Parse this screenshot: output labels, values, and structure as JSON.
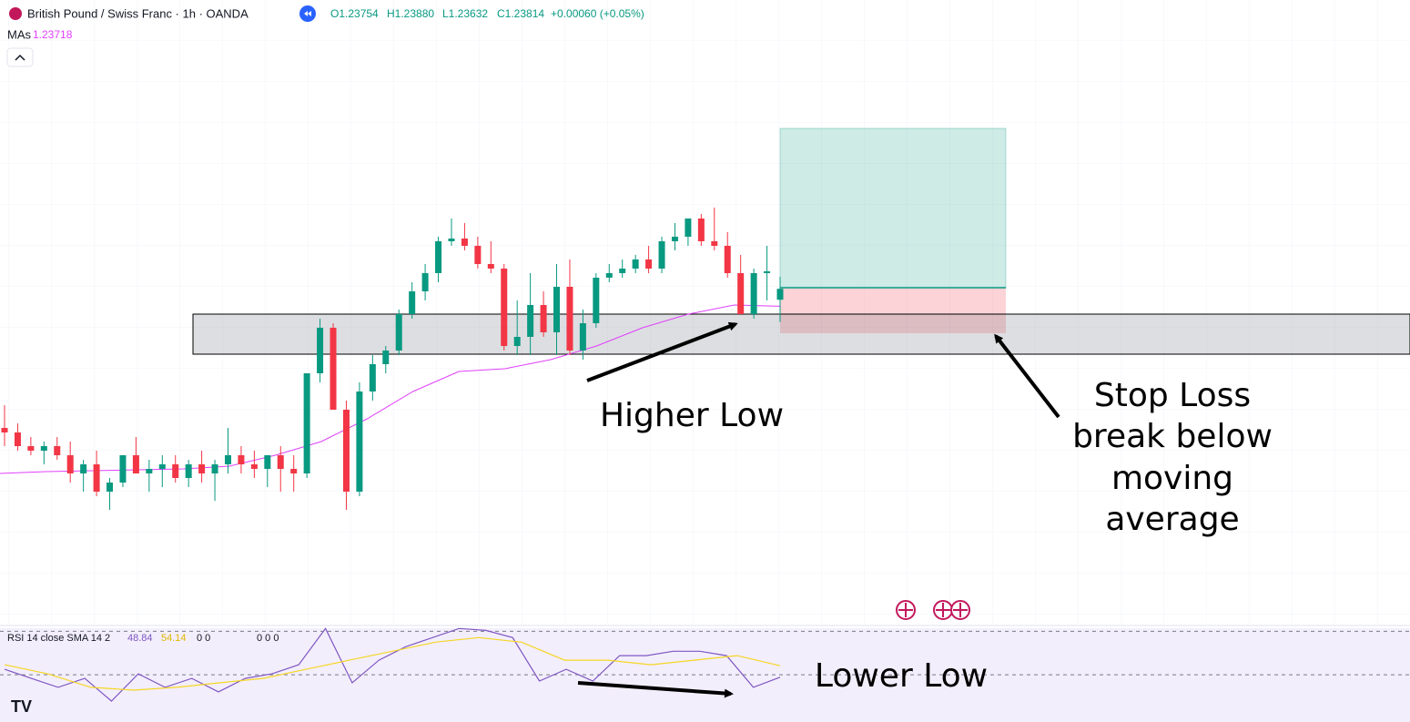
{
  "chart_data": {
    "type": "candlestick",
    "symbol": "British Pound / Swiss Franc · 1h · OANDA",
    "ohlc_text": [
      "O1.23754",
      "H1.23880",
      "L1.23632",
      "C1.23814",
      "+0.00060 (+0.05%)"
    ],
    "ma_label": "MAs",
    "ylim": [
      1.21975,
      1.254
    ],
    "up_color": "#089981",
    "down_color": "#f23645",
    "candles": [
      [
        1.2305,
        1.23175,
        1.2295,
        1.23025
      ],
      [
        1.23025,
        1.23075,
        1.22925,
        1.2295
      ],
      [
        1.2295,
        1.23,
        1.229,
        1.22925
      ],
      [
        1.22925,
        1.22975,
        1.2285,
        1.2295
      ],
      [
        1.2295,
        1.23,
        1.22875,
        1.229
      ],
      [
        1.229,
        1.22975,
        1.2275,
        1.228
      ],
      [
        1.228,
        1.22875,
        1.227,
        1.2285
      ],
      [
        1.2285,
        1.22925,
        1.22675,
        1.227
      ],
      [
        1.227,
        1.22775,
        1.226,
        1.2275
      ],
      [
        1.2275,
        1.229,
        1.22725,
        1.229
      ],
      [
        1.229,
        1.23,
        1.228,
        1.228
      ],
      [
        1.228,
        1.22875,
        1.227,
        1.22825
      ],
      [
        1.22825,
        1.229,
        1.22725,
        1.2285
      ],
      [
        1.2285,
        1.229,
        1.2275,
        1.22775
      ],
      [
        1.22775,
        1.22875,
        1.22725,
        1.2285
      ],
      [
        1.2285,
        1.22925,
        1.2275,
        1.228
      ],
      [
        1.228,
        1.22875,
        1.2265,
        1.2285
      ],
      [
        1.2285,
        1.2305,
        1.228,
        1.229
      ],
      [
        1.229,
        1.2295,
        1.228,
        1.2285
      ],
      [
        1.2285,
        1.22925,
        1.22775,
        1.22825
      ],
      [
        1.22825,
        1.229,
        1.22725,
        1.229
      ],
      [
        1.229,
        1.2295,
        1.227,
        1.22825
      ],
      [
        1.22825,
        1.229,
        1.227,
        1.228
      ],
      [
        1.228,
        1.2335,
        1.22775,
        1.2335
      ],
      [
        1.2335,
        1.2365,
        1.233,
        1.236
      ],
      [
        1.236,
        1.23625,
        1.2315,
        1.2315
      ],
      [
        1.2315,
        1.232,
        1.226,
        1.227
      ],
      [
        1.227,
        1.233,
        1.22675,
        1.2325
      ],
      [
        1.2325,
        1.2345,
        1.232,
        1.234
      ],
      [
        1.234,
        1.235,
        1.2335,
        1.23475
      ],
      [
        1.23475,
        1.237,
        1.2345,
        1.23675
      ],
      [
        1.23675,
        1.2385,
        1.2365,
        1.238
      ],
      [
        1.238,
        1.2395,
        1.2375,
        1.239
      ],
      [
        1.239,
        1.241,
        1.2385,
        1.24075
      ],
      [
        1.24075,
        1.242,
        1.2405,
        1.2409
      ],
      [
        1.2409,
        1.24175,
        1.24025,
        1.2405
      ],
      [
        1.2405,
        1.241,
        1.23925,
        1.2395
      ],
      [
        1.2395,
        1.24075,
        1.239,
        1.23925
      ],
      [
        1.23925,
        1.2395,
        1.23475,
        1.235
      ],
      [
        1.235,
        1.2375,
        1.2345,
        1.2355
      ],
      [
        1.2355,
        1.239,
        1.2345,
        1.23725
      ],
      [
        1.23725,
        1.238,
        1.2355,
        1.23575
      ],
      [
        1.23575,
        1.2395,
        1.2345,
        1.23825
      ],
      [
        1.23825,
        1.23975,
        1.2345,
        1.23475
      ],
      [
        1.23475,
        1.237,
        1.23425,
        1.23625
      ],
      [
        1.23625,
        1.239,
        1.236,
        1.23875
      ],
      [
        1.23875,
        1.2395,
        1.2385,
        1.239
      ],
      [
        1.239,
        1.23975,
        1.23875,
        1.23925
      ],
      [
        1.23925,
        1.24,
        1.239,
        1.23975
      ],
      [
        1.23975,
        1.2405,
        1.239,
        1.23925
      ],
      [
        1.23925,
        1.241,
        1.239,
        1.24075
      ],
      [
        1.24075,
        1.24175,
        1.24025,
        1.241
      ],
      [
        1.241,
        1.242,
        1.2405,
        1.242
      ],
      [
        1.242,
        1.24225,
        1.2405,
        1.24075
      ],
      [
        1.24075,
        1.2426,
        1.24025,
        1.2405
      ],
      [
        1.2405,
        1.24125,
        1.23875,
        1.239
      ],
      [
        1.239,
        1.24,
        1.23675,
        1.23675
      ],
      [
        1.23675,
        1.23925,
        1.2365,
        1.239
      ],
      [
        1.239,
        1.2405,
        1.2375,
        1.2391
      ],
      [
        1.23754,
        1.2388,
        1.23632,
        1.23814
      ]
    ],
    "ma": {
      "color": "#e040fb",
      "values": [
        1.228,
        1.2281,
        1.22815,
        1.2282,
        1.22825,
        1.2284,
        1.229,
        1.22975,
        1.231,
        1.2325,
        1.2336,
        1.23375,
        1.23425,
        1.235,
        1.236,
        1.23675,
        1.23725,
        1.23718
      ]
    },
    "zone": [
      1.23455,
      1.23675
    ],
    "position": {
      "target": 1.24695,
      "entry": 1.2382,
      "stop": 1.2357
    },
    "rsi": {
      "label": "RSI 14 close SMA 14 2",
      "ylim": [
        29.5,
        73.5
      ],
      "levels": [
        70,
        50
      ],
      "extra": [
        "0 0",
        "0 0 0"
      ],
      "series": [
        {
          "color": "#7e57c2",
          "values": [
            52.5,
            48.3,
            44.2,
            48.3,
            37.9,
            50.4,
            44.2,
            48.3,
            42.1,
            48.3,
            50.4,
            54.6,
            71.3,
            46.3,
            56.7,
            62.9,
            67.1,
            71.3,
            70.4,
            67.1,
            47.1,
            52.5,
            47.1,
            58.8,
            58.8,
            60.8,
            60.8,
            58.8,
            44.2,
            48.84
          ]
        },
        {
          "color": "#f5d623",
          "values": [
            54.6,
            50.4,
            44.2,
            42.9,
            44.2,
            46.3,
            48.3,
            52.5,
            56.7,
            60.8,
            65,
            67.1,
            65,
            56.7,
            56.7,
            54.6,
            56.7,
            58.8,
            54.14
          ]
        }
      ]
    },
    "annotations": {
      "higher_low": "Higher Low",
      "stop_loss": [
        "Stop Loss",
        "break below",
        "moving",
        "average"
      ],
      "lower_low": "Lower Low"
    }
  }
}
